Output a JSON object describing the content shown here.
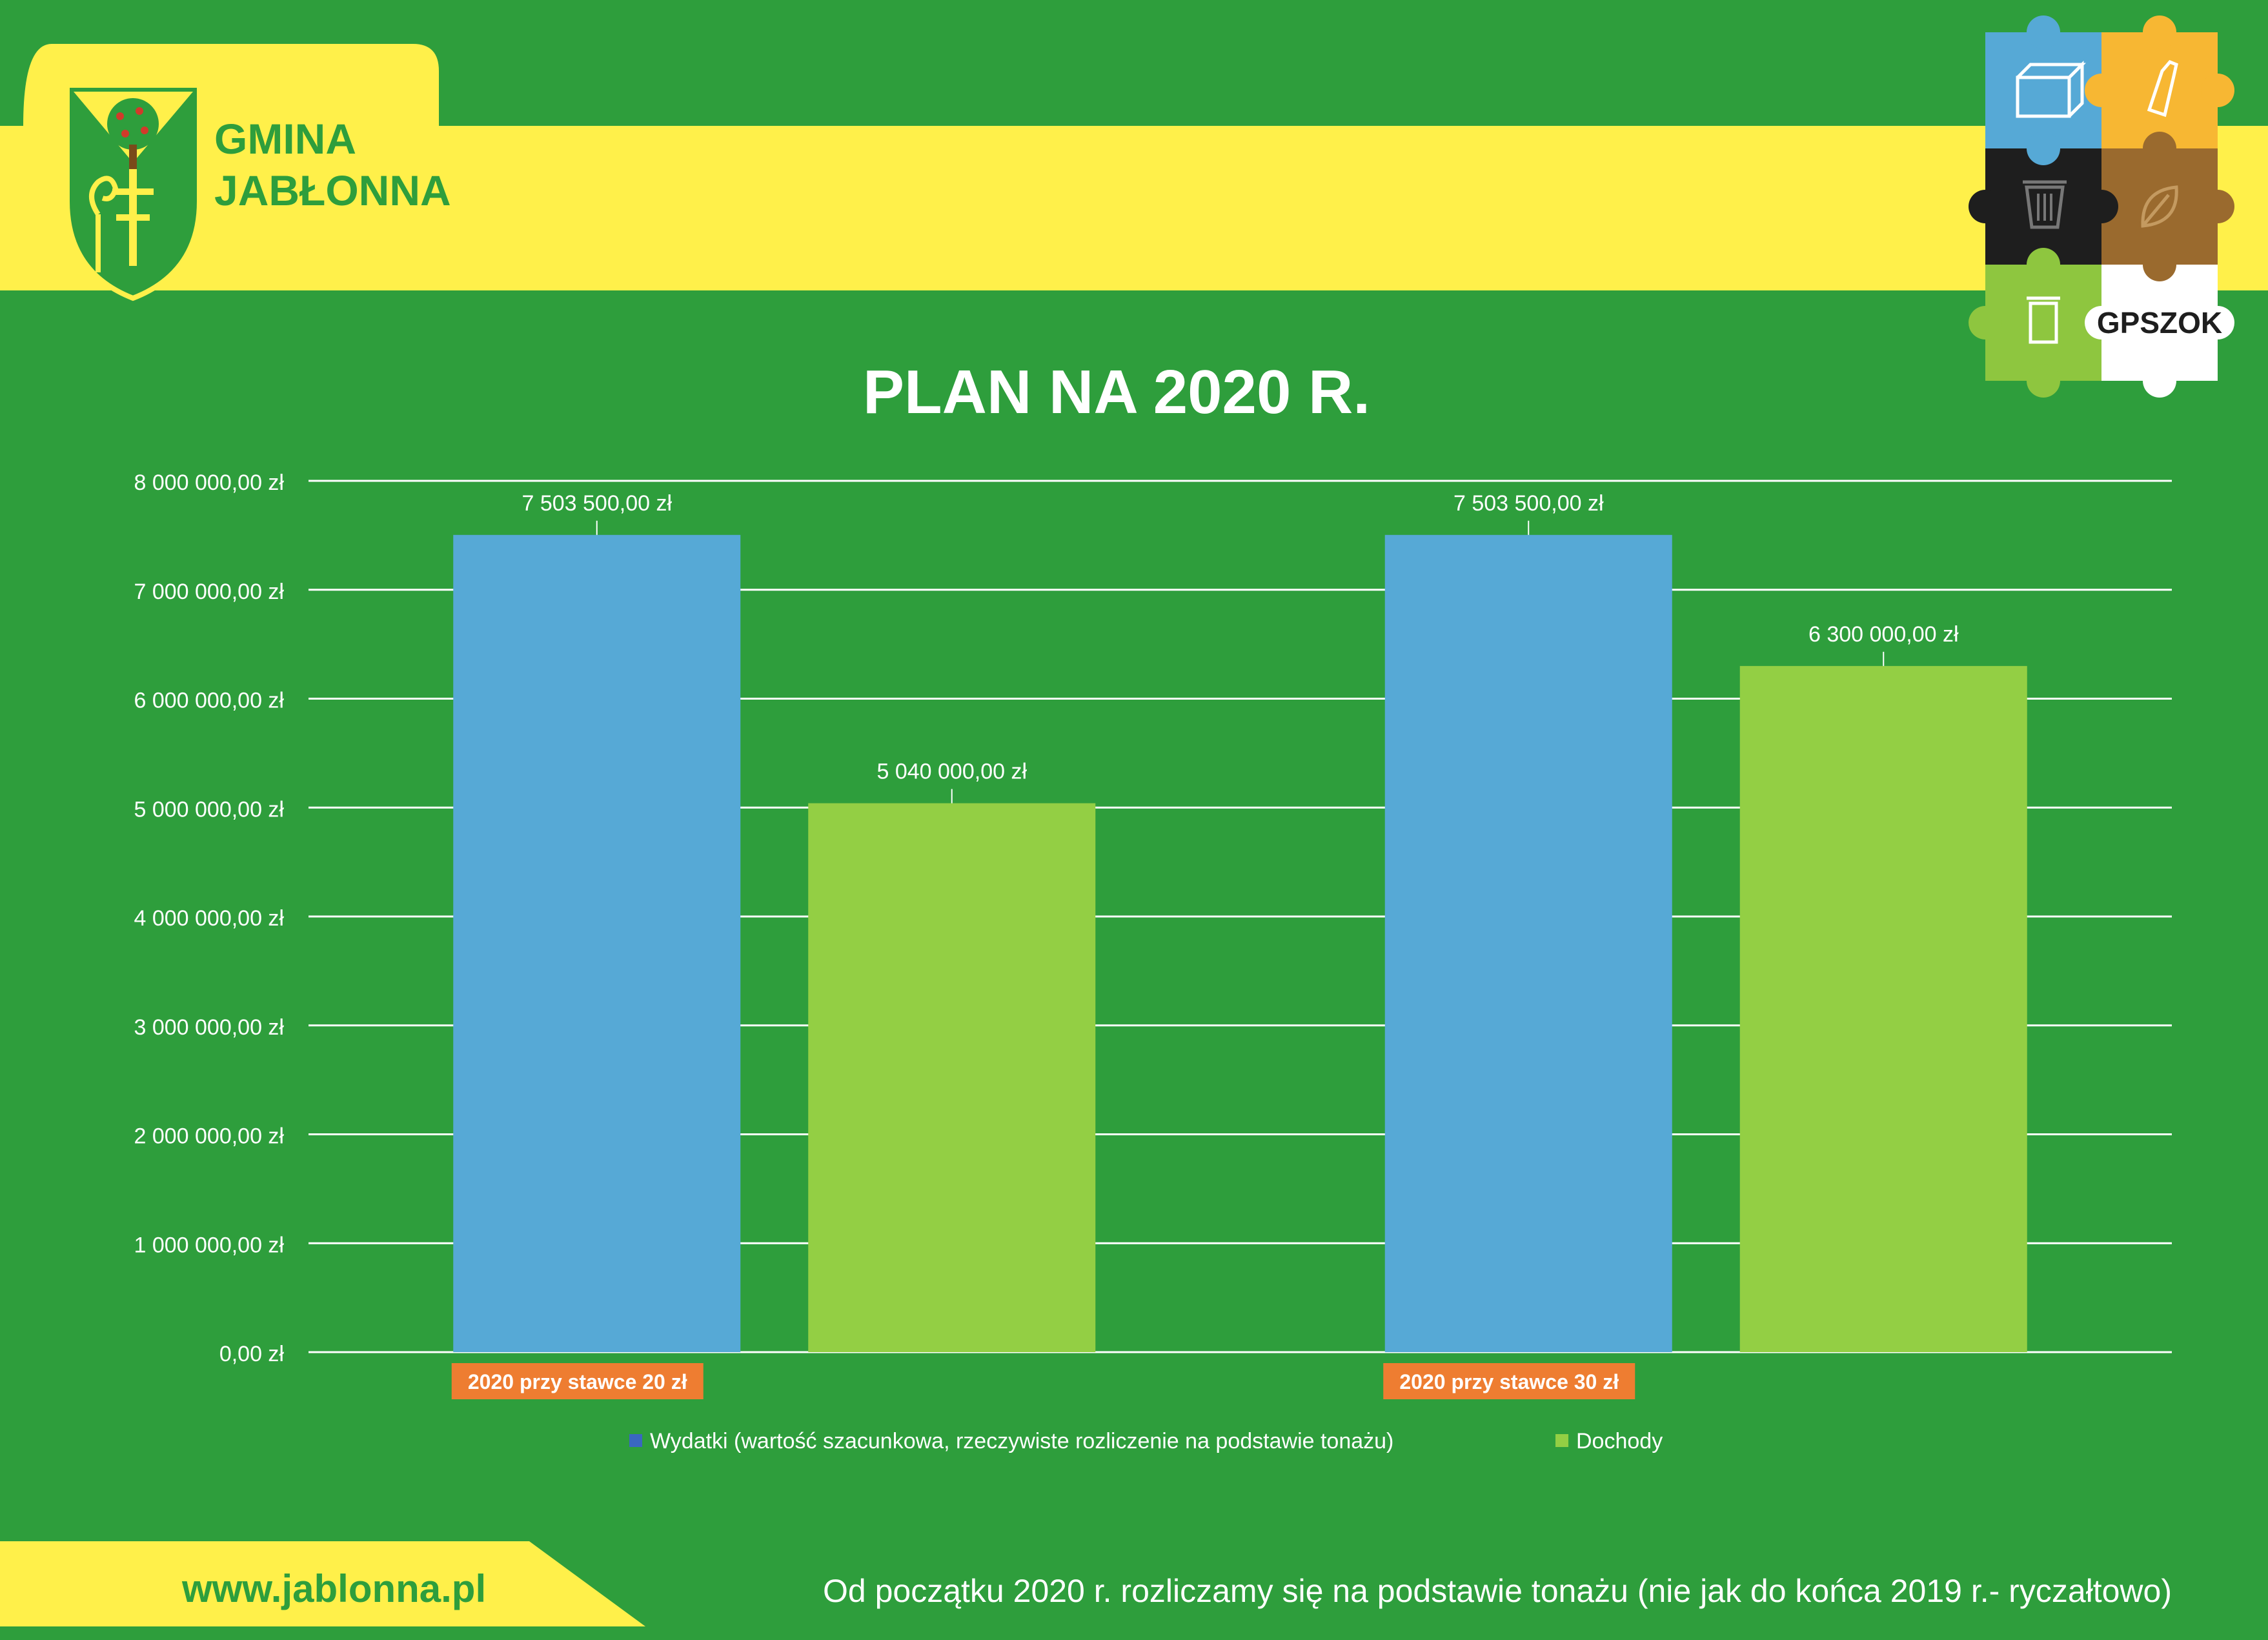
{
  "header": {
    "brand_line1": "GMINA",
    "brand_line2": "JABŁONNA",
    "badge_text": "GPSZOK"
  },
  "footer": {
    "website": "www.jablonna.pl",
    "note": "Od początku 2020 r. rozliczamy się na podstawie tonażu (nie jak do końca 2019 r.- ryczałtowo)"
  },
  "colors": {
    "background": "#2e9e3c",
    "yellow": "#fff04a",
    "bar_blue": "#56a9d6",
    "bar_green": "#93cf44",
    "category_label_bg": "#ee7d31"
  },
  "icons": [
    "coat-of-arms-icon",
    "box-icon",
    "bottle-icon",
    "trash-bin-icon",
    "leaf-icon",
    "jar-icon"
  ],
  "chart_data": {
    "type": "bar",
    "title": "PLAN NA 2020 R.",
    "categories": [
      "2020 przy stawce 20 zł",
      "2020 przy stawce 30 zł"
    ],
    "series": [
      {
        "name": "Wydatki (wartość szacunkowa, rzeczywiste rozliczenie na podstawie tonażu)",
        "values": [
          7503500,
          7503500
        ],
        "labels": [
          "7 503 500,00 zł",
          "7 503 500,00 zł"
        ],
        "color": "#56a9d6"
      },
      {
        "name": "Dochody",
        "values": [
          5040000,
          6300000
        ],
        "labels": [
          "5 040 000,00 zł",
          "6 300 000,00 zł"
        ],
        "color": "#93cf44"
      }
    ],
    "ylim": [
      0,
      8000000
    ],
    "yticks": [
      0,
      1000000,
      2000000,
      3000000,
      4000000,
      5000000,
      6000000,
      7000000,
      8000000
    ],
    "ytick_labels": [
      "0,00 zł",
      "1 000 000,00 zł",
      "2 000 000,00 zł",
      "3 000 000,00 zł",
      "4 000 000,00 zł",
      "5 000 000,00 zł",
      "6 000 000,00 zł",
      "7 000 000,00 zł",
      "8 000 000,00 zł"
    ],
    "grid": true,
    "legend": "bottom"
  }
}
